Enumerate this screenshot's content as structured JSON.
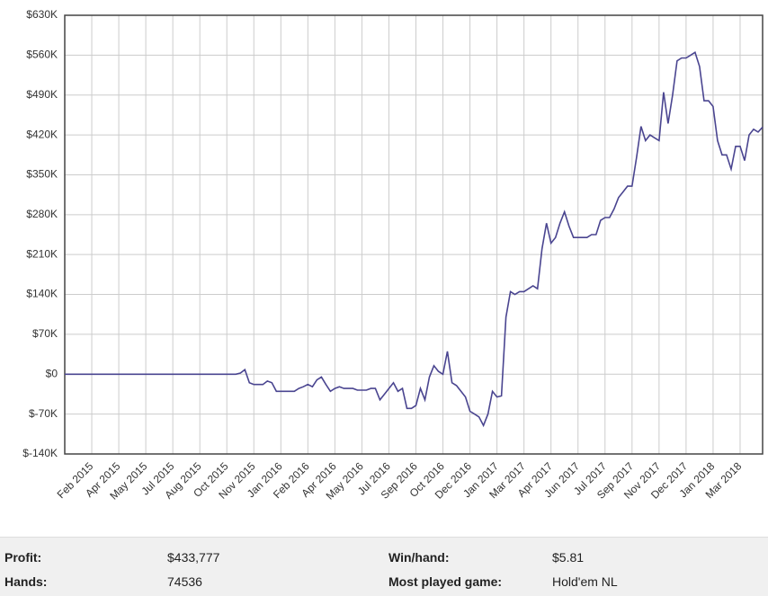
{
  "chart_data": {
    "type": "line",
    "categories": [
      null,
      null,
      null,
      null,
      null,
      null,
      "Feb 2015",
      null,
      null,
      null,
      null,
      null,
      "Apr 2015",
      null,
      null,
      null,
      null,
      null,
      "May 2015",
      null,
      null,
      null,
      null,
      null,
      "Jul 2015",
      null,
      null,
      null,
      null,
      null,
      "Aug 2015",
      null,
      null,
      null,
      null,
      null,
      "Oct 2015",
      null,
      null,
      null,
      null,
      null,
      "Nov 2015",
      null,
      null,
      null,
      null,
      null,
      "Jan 2016",
      null,
      null,
      null,
      null,
      null,
      "Feb 2016",
      null,
      null,
      null,
      null,
      null,
      "Apr 2016",
      null,
      null,
      null,
      null,
      null,
      "May 2016",
      null,
      null,
      null,
      null,
      null,
      "Jul 2016",
      null,
      null,
      null,
      null,
      null,
      "Sep 2016",
      null,
      null,
      null,
      null,
      null,
      "Oct 2016",
      null,
      null,
      null,
      null,
      null,
      "Dec 2016",
      null,
      null,
      null,
      null,
      null,
      "Jan 2017",
      null,
      null,
      null,
      null,
      null,
      "Mar 2017",
      null,
      null,
      null,
      null,
      null,
      "Apr 2017",
      null,
      null,
      null,
      null,
      null,
      "Jun 2017",
      null,
      null,
      null,
      null,
      null,
      "Jul 2017",
      null,
      null,
      null,
      null,
      null,
      "Sep 2017",
      null,
      null,
      null,
      null,
      null,
      "Nov 2017",
      null,
      null,
      null,
      null,
      null,
      "Dec 2017",
      null,
      null,
      null,
      null,
      null,
      "Jan 2018",
      null,
      null,
      null,
      null,
      null,
      "Mar 2018",
      null,
      null,
      null,
      null,
      null
    ],
    "series": [
      {
        "color": "#4a4590",
        "values": [
          0,
          0,
          0,
          0,
          0,
          0,
          0,
          0,
          0,
          0,
          0,
          0,
          0,
          0,
          0,
          0,
          0,
          0,
          0,
          0,
          0,
          0,
          0,
          0,
          0,
          0,
          0,
          0,
          0,
          0,
          0,
          0,
          0,
          0,
          0,
          0,
          0,
          0,
          0,
          2000,
          8000,
          -15000,
          -18000,
          -18000,
          -18000,
          -12000,
          -15000,
          -30000,
          -30000,
          -30000,
          -30000,
          -30000,
          -25000,
          -22000,
          -18000,
          -22000,
          -10000,
          -5000,
          -18000,
          -30000,
          -25000,
          -22000,
          -25000,
          -25000,
          -25000,
          -28000,
          -28000,
          -28000,
          -25000,
          -25000,
          -45000,
          -35000,
          -25000,
          -15000,
          -30000,
          -25000,
          -60000,
          -60000,
          -55000,
          -25000,
          -45000,
          -5000,
          15000,
          5000,
          0,
          40000,
          -15000,
          -20000,
          -30000,
          -40000,
          -65000,
          -70000,
          -75000,
          -90000,
          -70000,
          -30000,
          -40000,
          -38000,
          100000,
          145000,
          140000,
          145000,
          145000,
          150000,
          155000,
          150000,
          220000,
          265000,
          230000,
          240000,
          265000,
          285000,
          260000,
          240000,
          240000,
          240000,
          240000,
          245000,
          245000,
          270000,
          275000,
          275000,
          290000,
          310000,
          320000,
          330000,
          330000,
          380000,
          435000,
          410000,
          420000,
          415000,
          410000,
          495000,
          440000,
          490000,
          550000,
          555000,
          555000,
          560000,
          565000,
          540000,
          480000,
          480000,
          470000,
          410000,
          385000,
          385000,
          360000,
          400000,
          400000,
          375000,
          420000,
          430000,
          425000,
          433777
        ]
      }
    ],
    "ylim": [
      -140000,
      630000
    ],
    "yticks": [
      {
        "value": -140000,
        "label": "$-140K"
      },
      {
        "value": -70000,
        "label": "$-70K"
      },
      {
        "value": 0,
        "label": "$0"
      },
      {
        "value": 70000,
        "label": "$70K"
      },
      {
        "value": 140000,
        "label": "$140K"
      },
      {
        "value": 210000,
        "label": "$210K"
      },
      {
        "value": 280000,
        "label": "$280K"
      },
      {
        "value": 350000,
        "label": "$350K"
      },
      {
        "value": 420000,
        "label": "$420K"
      },
      {
        "value": 490000,
        "label": "$490K"
      },
      {
        "value": 560000,
        "label": "$560K"
      },
      {
        "value": 630000,
        "label": "$630K"
      }
    ],
    "grid": true
  },
  "stats": {
    "profit_label": "Profit:",
    "profit": "$433,777",
    "hands_label": "Hands:",
    "hands": "74536",
    "winhand_label": "Win/hand:",
    "winhand": "$5.81",
    "game_label": "Most played game:",
    "game": "Hold'em NL"
  }
}
